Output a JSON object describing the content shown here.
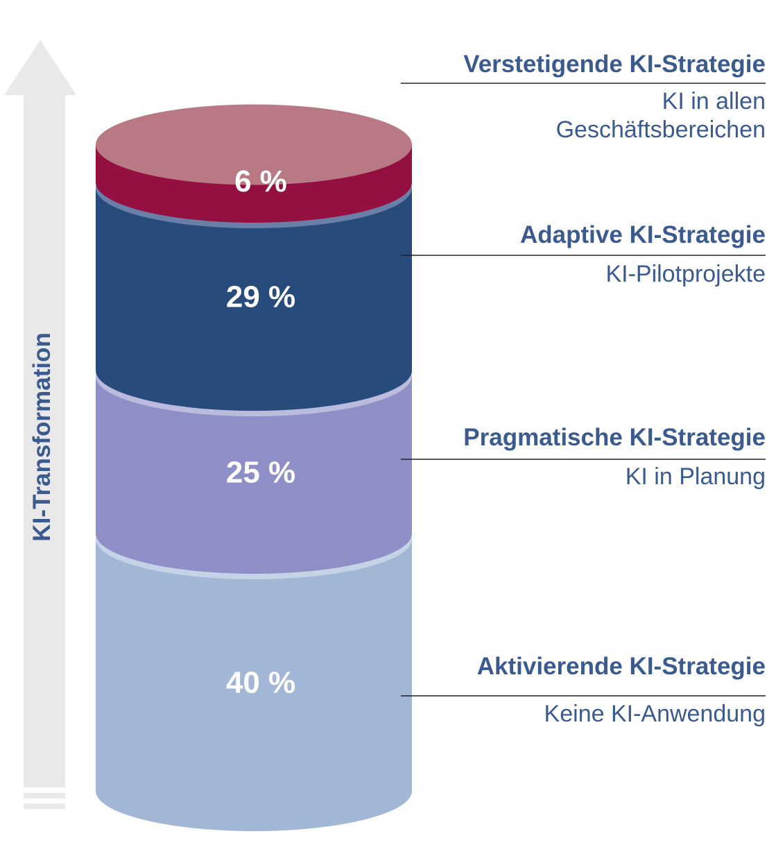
{
  "chart_data": {
    "type": "bar",
    "style": "stacked-cylinder",
    "axis_title": "KI-Transformation",
    "unit": "%",
    "segments": [
      {
        "category": "Aktivierende KI-Strategie",
        "description": "Keine KI-Anwendung",
        "value": 40,
        "value_label": "40 %",
        "colors": {
          "side": "#a2b7d6",
          "top": "#c5d3e6"
        }
      },
      {
        "category": "Pragmatische KI-Strategie",
        "description": "KI in Planung",
        "value": 25,
        "value_label": "25 %",
        "colors": {
          "side": "#8f8fc7",
          "top": "#bbbbde"
        }
      },
      {
        "category": "Adaptive KI-Strategie",
        "description": "KI-Pilotprojekte",
        "value": 29,
        "value_label": "29 %",
        "colors": {
          "side": "#274b7b",
          "top": "#6a7fa8"
        }
      },
      {
        "category": "Verstetigende KI-Strategie",
        "description": "KI in allen Geschäftsbereichen",
        "description_lines": [
          "KI in allen",
          "Geschäftsbereichen"
        ],
        "value": 6,
        "value_label": "6 %",
        "colors": {
          "side": "#941040",
          "top": "#b87985"
        }
      }
    ],
    "colors": {
      "arrow": "#e9e9e9",
      "text": "#3b5a8e",
      "leader_line": "#222222"
    }
  }
}
